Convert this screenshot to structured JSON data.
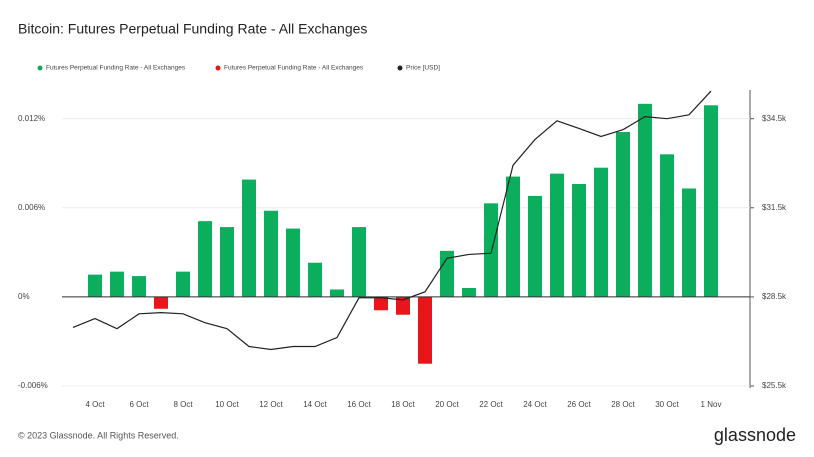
{
  "chart_data": {
    "type": "bar",
    "title": "Bitcoin: Futures Perpetual Funding Rate - All Exchanges",
    "footer": "© 2023 Glassnode. All Rights Reserved.",
    "brand": "glassnode",
    "categories": [
      null,
      "4 Oct",
      null,
      "6 Oct",
      null,
      "8 Oct",
      null,
      "10 Oct",
      null,
      "12 Oct",
      null,
      "14 Oct",
      null,
      "16 Oct",
      null,
      "18 Oct",
      null,
      "20 Oct",
      null,
      "22 Oct",
      null,
      "24 Oct",
      null,
      "26 Oct",
      null,
      "28 Oct",
      null,
      "30 Oct",
      null,
      "1 Nov"
    ],
    "series": [
      {
        "name": "Futures Perpetual Funding Rate - All Exchanges",
        "color": "#0bae5d",
        "values": [
          null,
          0.0015,
          0.0017,
          0.0014,
          null,
          0.0017,
          0.0051,
          0.0047,
          0.0079,
          0.0058,
          0.0046,
          0.0023,
          0.0005,
          0.0047,
          null,
          null,
          null,
          0.0031,
          0.0006,
          0.0063,
          0.0081,
          0.0068,
          0.0083,
          0.0076,
          0.0087,
          0.0111,
          0.013,
          0.0096,
          0.0073,
          0.0129
        ]
      },
      {
        "name": "Futures Perpetual Funding Rate - All Exchanges",
        "color": "#e8161b",
        "values": [
          null,
          null,
          null,
          null,
          -0.0008,
          null,
          null,
          null,
          null,
          null,
          null,
          null,
          null,
          null,
          -0.0009,
          -0.0012,
          -0.0045,
          null,
          null,
          null,
          null,
          null,
          null,
          null,
          null,
          null,
          null,
          null,
          null,
          null
        ]
      },
      {
        "name": "Price [USD]",
        "color": "#222222",
        "axis": "y2",
        "values": [
          27470,
          27770,
          27430,
          27930,
          27970,
          27930,
          27630,
          27430,
          26830,
          26730,
          26830,
          26830,
          27130,
          28470,
          28470,
          28400,
          28670,
          29800,
          29930,
          29970,
          32930,
          33800,
          34430,
          34170,
          33900,
          34130,
          34570,
          34500,
          34630,
          35430
        ]
      }
    ],
    "ylim": [
      -0.006,
      0.0142
    ],
    "yticks": [
      {
        "value": -0.006,
        "label": "-0.006%"
      },
      {
        "value": 0,
        "label": "0%"
      },
      {
        "value": 0.006,
        "label": "0.006%"
      },
      {
        "value": 0.012,
        "label": "0.012%"
      }
    ],
    "y2lim": [
      25500,
      35600
    ],
    "y2ticks": [
      {
        "value": 25500,
        "label": "$25.5k"
      },
      {
        "value": 28500,
        "label": "$28.5k"
      },
      {
        "value": 31500,
        "label": "$31.5k"
      },
      {
        "value": 34500,
        "label": "$34.5k"
      }
    ],
    "grid": true
  }
}
